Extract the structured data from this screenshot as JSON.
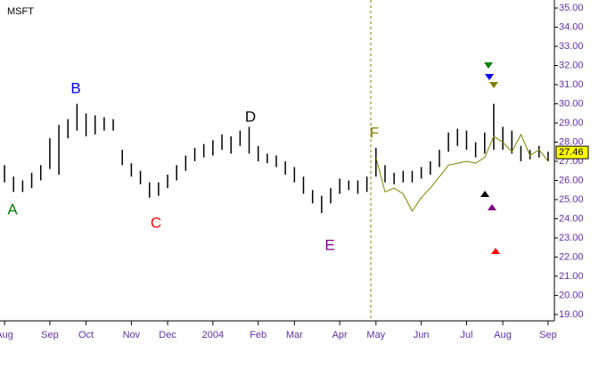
{
  "chart_data": {
    "type": "ohlc",
    "title": "MSFT",
    "categories": [
      "Aug",
      null,
      null,
      null,
      null,
      "Sep",
      null,
      null,
      null,
      "Oct",
      null,
      null,
      null,
      null,
      "Nov",
      null,
      null,
      null,
      "Dec",
      null,
      null,
      null,
      null,
      "2004",
      null,
      null,
      null,
      null,
      "Feb",
      null,
      null,
      null,
      "Mar",
      null,
      null,
      null,
      null,
      "Apr",
      null,
      null,
      null,
      "May",
      null,
      null,
      null,
      null,
      "Jun",
      null,
      null,
      null,
      null,
      "Jul",
      null,
      null,
      null,
      "Aug",
      null,
      null,
      null,
      null,
      "Sep"
    ],
    "high": [
      26.8,
      26.2,
      26.0,
      26.4,
      26.8,
      28.2,
      28.9,
      29.2,
      30.0,
      29.5,
      29.4,
      29.3,
      29.2,
      27.6,
      26.9,
      26.5,
      25.9,
      25.9,
      26.3,
      26.8,
      27.3,
      27.7,
      27.9,
      28.1,
      28.4,
      28.3,
      28.6,
      28.8,
      27.8,
      27.4,
      27.3,
      27.0,
      26.7,
      26.2,
      25.5,
      25.2,
      25.6,
      26.1,
      26.0,
      26.0,
      26.2,
      27.7,
      26.8,
      26.4,
      26.5,
      26.5,
      26.7,
      27.0,
      27.6,
      28.5,
      28.7,
      28.6,
      28.0,
      28.5,
      30.0,
      28.8,
      28.6,
      27.8,
      27.6,
      27.8,
      27.5
    ],
    "low": [
      25.9,
      25.4,
      25.4,
      25.6,
      26.0,
      26.6,
      26.3,
      28.2,
      28.6,
      28.3,
      28.4,
      28.6,
      28.6,
      26.8,
      26.2,
      25.8,
      25.1,
      25.2,
      25.6,
      26.0,
      26.5,
      27.0,
      27.2,
      27.3,
      27.6,
      27.4,
      27.8,
      27.4,
      27.0,
      26.9,
      26.7,
      26.3,
      25.9,
      25.3,
      24.8,
      24.3,
      24.8,
      25.3,
      25.5,
      25.3,
      25.4,
      26.2,
      25.9,
      25.8,
      25.9,
      25.9,
      26.1,
      26.3,
      26.7,
      27.5,
      27.8,
      27.6,
      27.2,
      27.4,
      27.6,
      27.6,
      27.4,
      27.0,
      27.1,
      27.2,
      27.0
    ],
    "color": "#000000",
    "overlay": {
      "color": "#808000",
      "values": [
        null,
        null,
        null,
        null,
        null,
        null,
        null,
        null,
        null,
        null,
        null,
        null,
        null,
        null,
        null,
        null,
        null,
        null,
        null,
        null,
        null,
        null,
        null,
        null,
        null,
        null,
        null,
        null,
        null,
        null,
        null,
        null,
        null,
        null,
        null,
        null,
        null,
        null,
        null,
        null,
        null,
        27.2,
        25.4,
        25.6,
        25.3,
        24.4,
        25.1,
        25.6,
        26.2,
        26.8,
        26.9,
        27.0,
        26.9,
        27.2,
        28.3,
        28.0,
        27.5,
        28.4,
        27.3,
        27.6,
        27.0
      ]
    },
    "last_price": 27.46,
    "ylim": [
      18.67,
      35.42
    ],
    "yticks": [
      {
        "value": 19,
        "label": "19.00"
      },
      {
        "value": 20,
        "label": "20.00"
      },
      {
        "value": 21,
        "label": "21.00"
      },
      {
        "value": 22,
        "label": "22.00"
      },
      {
        "value": 23,
        "label": "23.00"
      },
      {
        "value": 24,
        "label": "24.00"
      },
      {
        "value": 25,
        "label": "25.00"
      },
      {
        "value": 26,
        "label": "26.00"
      },
      {
        "value": 27,
        "label": "27.00"
      },
      {
        "value": 28,
        "label": "28.00"
      },
      {
        "value": 29,
        "label": "29.00"
      },
      {
        "value": 30,
        "label": "30.00"
      },
      {
        "value": 31,
        "label": "31.00"
      },
      {
        "value": 32,
        "label": "32.00"
      },
      {
        "value": 33,
        "label": "33.00"
      },
      {
        "value": 34,
        "label": "34.00"
      },
      {
        "value": 35,
        "label": "35.00"
      }
    ],
    "annotations": [
      {
        "text": "A",
        "color": "#008000"
      },
      {
        "text": "B",
        "color": "#0000ff"
      },
      {
        "text": "C",
        "color": "#ff0000"
      },
      {
        "text": "D",
        "color": "#000000"
      },
      {
        "text": "E",
        "color": "#800080"
      },
      {
        "text": "F",
        "color": "#808000"
      }
    ]
  }
}
